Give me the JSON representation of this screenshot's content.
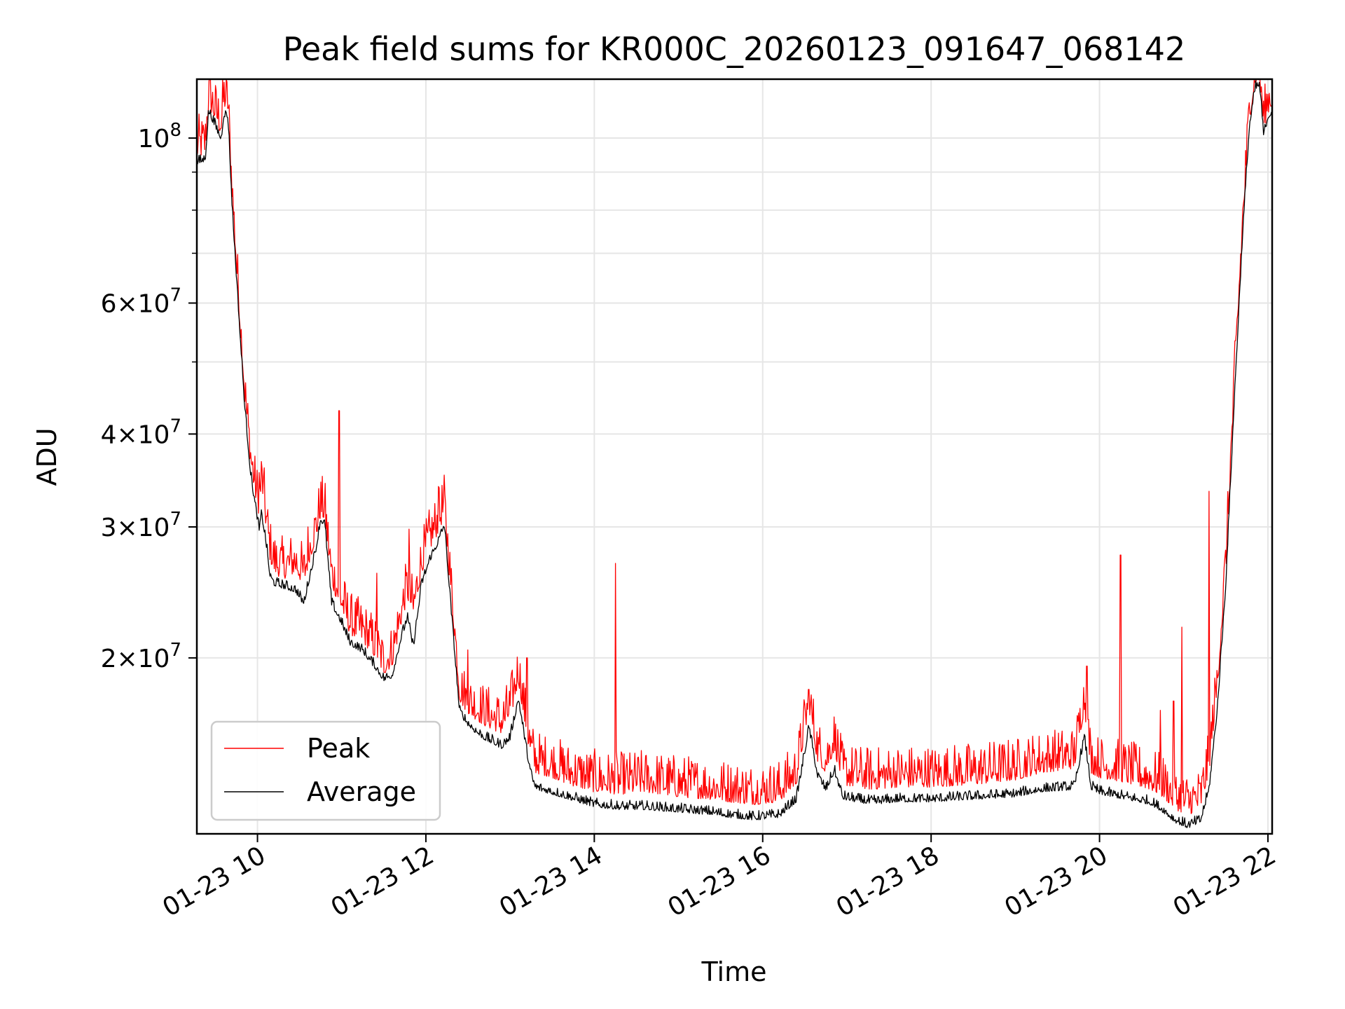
{
  "chart_data": {
    "type": "line",
    "title": "Peak field sums for KR000C_20260123_091647_068142",
    "xlabel": "Time",
    "ylabel": "ADU",
    "yscale": "log",
    "grid": true,
    "legend_position": "lower-left",
    "xlim": [
      9.28,
      22.05
    ],
    "ylim": [
      11600000,
      120000000
    ],
    "x_units": "hours since 01-23 00:00",
    "x_ticks": [
      {
        "value": 10,
        "label": "01-23 10"
      },
      {
        "value": 12,
        "label": "01-23 12"
      },
      {
        "value": 14,
        "label": "01-23 14"
      },
      {
        "value": 16,
        "label": "01-23 16"
      },
      {
        "value": 18,
        "label": "01-23 18"
      },
      {
        "value": 20,
        "label": "01-23 20"
      },
      {
        "value": 22,
        "label": "01-23 22"
      }
    ],
    "y_ticks": [
      {
        "value": 20000000,
        "mantissa": "2",
        "exponent": "7"
      },
      {
        "value": 30000000,
        "mantissa": "3",
        "exponent": "7"
      },
      {
        "value": 40000000,
        "mantissa": "4",
        "exponent": "7"
      },
      {
        "value": 60000000,
        "mantissa": "6",
        "exponent": "7"
      },
      {
        "value": 100000000,
        "mantissa": "",
        "exponent": "8"
      }
    ],
    "y_minor_ticks": [
      50000000,
      70000000,
      80000000,
      90000000
    ],
    "series": [
      {
        "name": "Peak",
        "color": "#ff0000",
        "x": [
          9.28,
          9.38,
          9.42,
          9.5,
          9.57,
          9.6,
          9.65,
          9.7,
          9.78,
          9.85,
          9.92,
          9.97,
          10.02,
          10.05,
          10.1,
          10.15,
          10.2,
          10.3,
          10.45,
          10.55,
          10.62,
          10.7,
          10.75,
          10.8,
          10.88,
          10.97,
          11.1,
          11.25,
          11.4,
          11.5,
          11.6,
          11.7,
          11.78,
          11.85,
          11.95,
          12.05,
          12.15,
          12.22,
          12.3,
          12.4,
          12.5,
          12.6,
          12.7,
          12.8,
          12.9,
          13.0,
          13.1,
          13.2,
          13.25,
          13.3,
          13.5,
          13.7,
          13.9,
          14.0,
          14.3,
          14.6,
          15.0,
          15.4,
          15.6,
          15.9,
          16.2,
          16.4,
          16.55,
          16.65,
          16.75,
          16.85,
          16.95,
          17.1,
          17.3,
          17.6,
          18.0,
          18.5,
          19.0,
          19.3,
          19.7,
          19.82,
          19.9,
          20.0,
          20.3,
          20.6,
          20.75,
          20.9,
          21.05,
          21.2,
          21.3,
          21.4,
          21.5,
          21.6,
          21.7,
          21.78,
          21.85,
          21.9,
          21.95,
          22.0,
          22.05
        ],
        "y": [
          94000000,
          95000000,
          110000000,
          105000000,
          101000000,
          110000000,
          108000000,
          82000000,
          58000000,
          44000000,
          36000000,
          33000000,
          31000000,
          34000000,
          30000000,
          27000000,
          26000000,
          25500000,
          26000000,
          25000000,
          27000000,
          29000000,
          31000000,
          30500000,
          25000000,
          23500000,
          21500000,
          21000000,
          20000000,
          19000000,
          19500000,
          22000000,
          24000000,
          22500000,
          26000000,
          28000000,
          29500000,
          31000000,
          24000000,
          17500000,
          16800000,
          16500000,
          16200000,
          16000000,
          15800000,
          16500000,
          18500000,
          15500000,
          14500000,
          14000000,
          13800000,
          13500000,
          13300000,
          13200000,
          13100000,
          13200000,
          13000000,
          12900000,
          12800000,
          12700000,
          12800000,
          13500000,
          17000000,
          14500000,
          14000000,
          15000000,
          13500000,
          13400000,
          13300000,
          13400000,
          13400000,
          13500000,
          13700000,
          14000000,
          14200000,
          17000000,
          14000000,
          13800000,
          13600000,
          13300000,
          13000000,
          12500000,
          12300000,
          12500000,
          14000000,
          18000000,
          26000000,
          45000000,
          75000000,
          105000000,
          118000000,
          119000000,
          102000000,
          108000000,
          110000000
        ],
        "spikes": [
          {
            "x": 10.02,
            "y": 35500000
          },
          {
            "x": 10.6,
            "y": 30000000
          },
          {
            "x": 10.97,
            "y": 43000000
          },
          {
            "x": 11.42,
            "y": 26000000
          },
          {
            "x": 11.8,
            "y": 29800000
          },
          {
            "x": 12.15,
            "y": 34000000
          },
          {
            "x": 12.5,
            "y": 20500000
          },
          {
            "x": 13.2,
            "y": 20000000
          },
          {
            "x": 14.25,
            "y": 26800000
          },
          {
            "x": 16.6,
            "y": 17500000
          },
          {
            "x": 19.85,
            "y": 19500000
          },
          {
            "x": 20.25,
            "y": 27500000
          },
          {
            "x": 20.72,
            "y": 17000000
          },
          {
            "x": 20.88,
            "y": 17500000
          },
          {
            "x": 20.98,
            "y": 22000000
          },
          {
            "x": 21.3,
            "y": 33500000
          }
        ]
      },
      {
        "name": "Average",
        "color": "#000000",
        "x": [
          9.28,
          9.38,
          9.42,
          9.5,
          9.57,
          9.6,
          9.65,
          9.7,
          9.78,
          9.85,
          9.92,
          9.97,
          10.02,
          10.05,
          10.1,
          10.15,
          10.2,
          10.3,
          10.45,
          10.55,
          10.62,
          10.7,
          10.75,
          10.8,
          10.88,
          10.97,
          11.1,
          11.25,
          11.4,
          11.5,
          11.6,
          11.7,
          11.78,
          11.85,
          11.95,
          12.05,
          12.15,
          12.22,
          12.3,
          12.4,
          12.5,
          12.6,
          12.7,
          12.8,
          12.9,
          13.0,
          13.1,
          13.2,
          13.25,
          13.3,
          13.5,
          13.7,
          13.9,
          14.0,
          14.3,
          14.6,
          15.0,
          15.4,
          15.6,
          15.9,
          16.2,
          16.4,
          16.55,
          16.65,
          16.75,
          16.85,
          16.95,
          17.1,
          17.3,
          17.6,
          18.0,
          18.5,
          19.0,
          19.3,
          19.7,
          19.82,
          19.9,
          20.0,
          20.3,
          20.6,
          20.75,
          20.9,
          21.05,
          21.2,
          21.3,
          21.4,
          21.5,
          21.6,
          21.7,
          21.78,
          21.85,
          21.9,
          21.95,
          22.0,
          22.05
        ],
        "y": [
          92000000,
          93000000,
          108000000,
          103000000,
          99000000,
          107000000,
          106000000,
          80000000,
          57000000,
          43000000,
          35000000,
          32000000,
          29500000,
          31000000,
          28500000,
          25500000,
          25000000,
          24800000,
          24500000,
          23500000,
          25500000,
          28000000,
          30500000,
          30000000,
          23500000,
          22500000,
          20800000,
          20300000,
          19300000,
          18600000,
          18800000,
          21000000,
          22500000,
          20500000,
          25000000,
          27000000,
          28500000,
          30000000,
          23000000,
          16800000,
          16200000,
          15800000,
          15500000,
          15300000,
          15100000,
          15500000,
          17500000,
          14800000,
          13800000,
          13300000,
          13100000,
          12900000,
          12700000,
          12600000,
          12500000,
          12500000,
          12400000,
          12300000,
          12200000,
          12100000,
          12200000,
          12800000,
          16000000,
          13800000,
          13200000,
          14000000,
          12900000,
          12800000,
          12700000,
          12800000,
          12800000,
          12900000,
          13000000,
          13200000,
          13300000,
          15500000,
          13300000,
          13100000,
          12900000,
          12700000,
          12400000,
          12000000,
          11800000,
          12000000,
          13200000,
          17000000,
          25000000,
          44000000,
          74000000,
          103000000,
          116000000,
          117000000,
          100000000,
          106000000,
          108000000
        ]
      }
    ]
  }
}
